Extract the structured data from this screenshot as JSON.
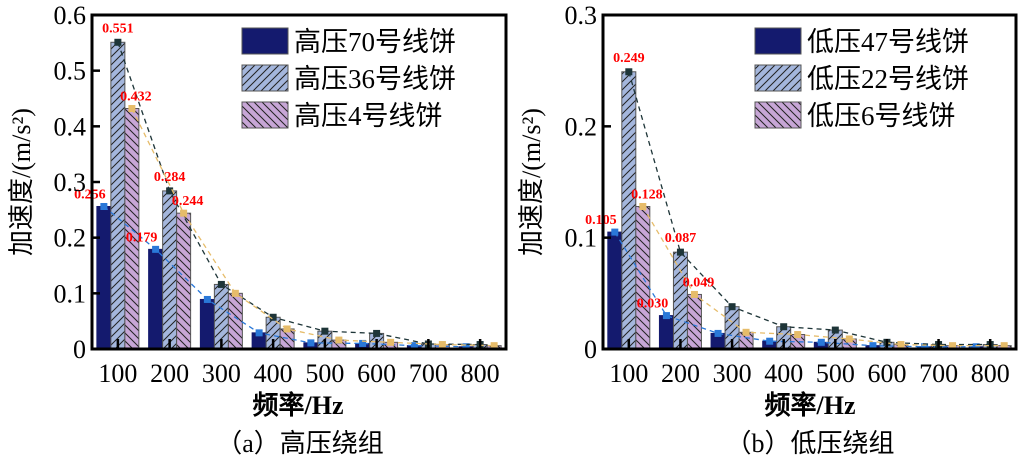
{
  "chart_data": [
    {
      "type": "bar",
      "caption": "（a）高压绕组",
      "xlabel": "频率/Hz",
      "ylabel": "加速度/(m/s²)",
      "ylim": [
        0,
        0.6
      ],
      "yticks": [
        "0",
        "0.1",
        "0.2",
        "0.3",
        "0.4",
        "0.5",
        "0.6"
      ],
      "categories": [
        "100",
        "200",
        "300",
        "400",
        "500",
        "600",
        "700",
        "800"
      ],
      "legend_position": "top-right",
      "series": [
        {
          "name": "高压70号线饼",
          "color": "#141a6e",
          "hatch": "none",
          "trend_color": "#2a78d8",
          "values": [
            0.256,
            0.179,
            0.089,
            0.029,
            0.011,
            0.01,
            0.006,
            0.004
          ],
          "labels": [
            "0.256",
            "0.179"
          ]
        },
        {
          "name": "高压36号线饼",
          "color": "#a4b6dc",
          "hatch": "forward",
          "trend_color": "#1e3538",
          "values": [
            0.551,
            0.284,
            0.116,
            0.057,
            0.032,
            0.028,
            0.009,
            0.008
          ],
          "labels": [
            "0.551",
            "0.284"
          ]
        },
        {
          "name": "高压4号线饼",
          "color": "#c7a6d6",
          "hatch": "backward",
          "trend_color": "#e6bc6a",
          "values": [
            0.432,
            0.244,
            0.1,
            0.036,
            0.016,
            0.012,
            0.008,
            0.006
          ],
          "labels": [
            "0.432",
            "0.244"
          ]
        }
      ]
    },
    {
      "type": "bar",
      "caption": "（b）低压绕组",
      "xlabel": "频率/Hz",
      "ylabel": "加速度/(m/s²)",
      "ylim": [
        0,
        0.3
      ],
      "yticks": [
        "0",
        "0.1",
        "0.2",
        "0.3"
      ],
      "categories": [
        "100",
        "200",
        "300",
        "400",
        "500",
        "600",
        "700",
        "800"
      ],
      "legend_position": "top-right",
      "series": [
        {
          "name": "低压47号线饼",
          "color": "#141a6e",
          "hatch": "none",
          "trend_color": "#2a78d8",
          "values": [
            0.105,
            0.03,
            0.014,
            0.007,
            0.006,
            0.003,
            0.002,
            0.002
          ],
          "labels": [
            "0.105",
            "0.030"
          ]
        },
        {
          "name": "低压22号线饼",
          "color": "#a4b6dc",
          "hatch": "forward",
          "trend_color": "#1e3538",
          "values": [
            0.249,
            0.087,
            0.038,
            0.02,
            0.017,
            0.006,
            0.004,
            0.004
          ],
          "labels": [
            "0.249",
            "0.087"
          ]
        },
        {
          "name": "低压6号线饼",
          "color": "#c7a6d6",
          "hatch": "backward",
          "trend_color": "#e6bc6a",
          "values": [
            0.128,
            0.049,
            0.015,
            0.013,
            0.009,
            0.004,
            0.003,
            0.003
          ],
          "labels": [
            "0.128",
            "0.049"
          ]
        }
      ]
    }
  ]
}
